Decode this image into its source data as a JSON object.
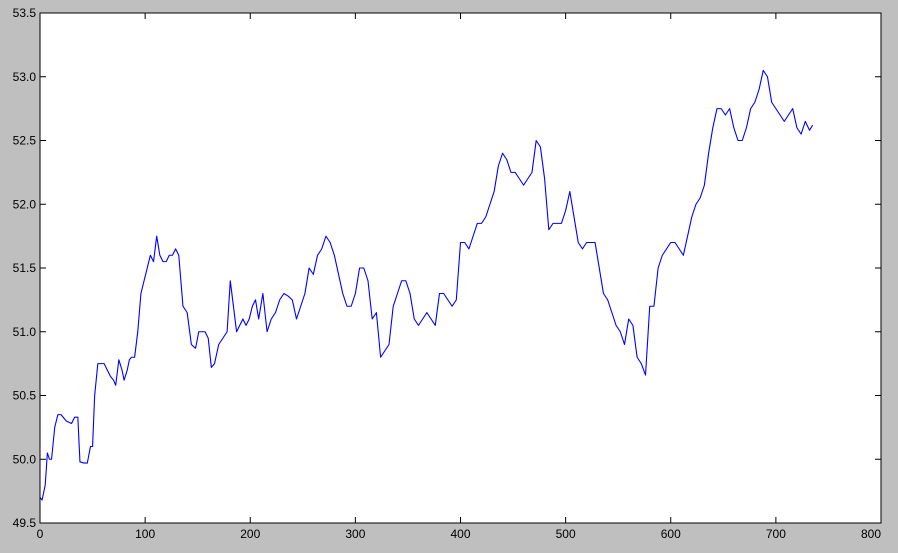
{
  "chart_data": {
    "type": "line",
    "title": "",
    "xlabel": "",
    "ylabel": "",
    "xlim": [
      0,
      800
    ],
    "ylim": [
      49.5,
      53.5
    ],
    "xticks": [
      0,
      100,
      200,
      300,
      400,
      500,
      600,
      700,
      800
    ],
    "yticks": [
      49.5,
      50.0,
      50.5,
      51.0,
      51.5,
      52.0,
      52.5,
      53.0,
      53.5
    ],
    "xtick_labels": [
      "0",
      "100",
      "200",
      "300",
      "400",
      "500",
      "600",
      "700",
      "800"
    ],
    "ytick_labels": [
      "49.5",
      "50.0",
      "50.5",
      "51.0",
      "51.5",
      "52.0",
      "52.5",
      "53.0",
      "53.5"
    ],
    "grid": false,
    "legend": "none",
    "line_color": "#0000ff",
    "series": [
      {
        "x": [
          0,
          2,
          5,
          7,
          9,
          11,
          14,
          17,
          20,
          25,
          30,
          33,
          36,
          38,
          42,
          45,
          48,
          50,
          52,
          55,
          58,
          61,
          64,
          67,
          70,
          72,
          75,
          78,
          80,
          83,
          85,
          87,
          90,
          93,
          96,
          99,
          102,
          105,
          108,
          111,
          114,
          117,
          120,
          123,
          126,
          129,
          132,
          136,
          140,
          144,
          148,
          151,
          154,
          157,
          160,
          163,
          166,
          170,
          174,
          178,
          181,
          184,
          187,
          190,
          193,
          196,
          199,
          202,
          205,
          208,
          212,
          216,
          220,
          224,
          228,
          232,
          236,
          240,
          244,
          248,
          252,
          256,
          260,
          264,
          268,
          272,
          276,
          280,
          284,
          288,
          292,
          296,
          300,
          304,
          308,
          312,
          316,
          320,
          324,
          328,
          332,
          336,
          340,
          344,
          348,
          352,
          356,
          360,
          364,
          368,
          372,
          376,
          380,
          384,
          388,
          392,
          396,
          400,
          404,
          408,
          412,
          416,
          420,
          424,
          428,
          432,
          436,
          440,
          444,
          448,
          452,
          456,
          460,
          464,
          468,
          472,
          476,
          480,
          484,
          488,
          492,
          496,
          500,
          504,
          508,
          512,
          516,
          520,
          524,
          528,
          532,
          536,
          540,
          544,
          548,
          552,
          556,
          560,
          564,
          568,
          572,
          576,
          580,
          584,
          588,
          592,
          596,
          600,
          604,
          608,
          612,
          616,
          620,
          624,
          628,
          632,
          636,
          640,
          644,
          648,
          652,
          656,
          660,
          664,
          668,
          672,
          676,
          680,
          684,
          688,
          692,
          696,
          700,
          704,
          708,
          712,
          716,
          720,
          724,
          728,
          732,
          735
        ],
        "y": [
          49.7,
          49.68,
          49.8,
          50.05,
          50.0,
          50.0,
          50.25,
          50.35,
          50.35,
          50.3,
          50.28,
          50.33,
          50.33,
          49.98,
          49.97,
          49.97,
          50.1,
          50.1,
          50.5,
          50.75,
          50.75,
          50.75,
          50.7,
          50.65,
          50.62,
          50.58,
          50.78,
          50.7,
          50.62,
          50.7,
          50.78,
          50.8,
          50.8,
          51.0,
          51.3,
          51.4,
          51.5,
          51.6,
          51.55,
          51.75,
          51.6,
          51.55,
          51.55,
          51.6,
          51.6,
          51.65,
          51.6,
          51.2,
          51.15,
          50.9,
          50.87,
          51.0,
          51.0,
          51.0,
          50.95,
          50.72,
          50.75,
          50.9,
          50.95,
          51.0,
          51.4,
          51.2,
          51.0,
          51.05,
          51.1,
          51.05,
          51.1,
          51.2,
          51.25,
          51.1,
          51.3,
          51.0,
          51.1,
          51.15,
          51.25,
          51.3,
          51.28,
          51.25,
          51.1,
          51.2,
          51.3,
          51.5,
          51.45,
          51.6,
          51.65,
          51.75,
          51.7,
          51.6,
          51.45,
          51.3,
          51.2,
          51.2,
          51.3,
          51.5,
          51.5,
          51.4,
          51.1,
          51.15,
          50.8,
          50.85,
          50.9,
          51.2,
          51.3,
          51.4,
          51.4,
          51.3,
          51.1,
          51.05,
          51.1,
          51.15,
          51.1,
          51.05,
          51.3,
          51.3,
          51.25,
          51.2,
          51.25,
          51.7,
          51.7,
          51.65,
          51.75,
          51.85,
          51.85,
          51.9,
          52.0,
          52.1,
          52.3,
          52.4,
          52.35,
          52.25,
          52.25,
          52.2,
          52.15,
          52.2,
          52.25,
          52.5,
          52.45,
          52.2,
          51.8,
          51.85,
          51.85,
          51.85,
          51.95,
          52.1,
          51.9,
          51.7,
          51.65,
          51.7,
          51.7,
          51.7,
          51.5,
          51.3,
          51.25,
          51.15,
          51.05,
          51.0,
          50.9,
          51.1,
          51.05,
          50.8,
          50.75,
          50.66,
          51.2,
          51.2,
          51.5,
          51.6,
          51.65,
          51.7,
          51.7,
          51.65,
          51.6,
          51.75,
          51.9,
          52.0,
          52.05,
          52.15,
          52.4,
          52.6,
          52.75,
          52.75,
          52.7,
          52.75,
          52.6,
          52.5,
          52.5,
          52.6,
          52.75,
          52.8,
          52.9,
          53.05,
          53.0,
          52.8,
          52.75,
          52.7,
          52.65,
          52.7,
          52.75,
          52.6,
          52.55,
          52.65,
          52.58,
          52.62
        ]
      }
    ]
  }
}
